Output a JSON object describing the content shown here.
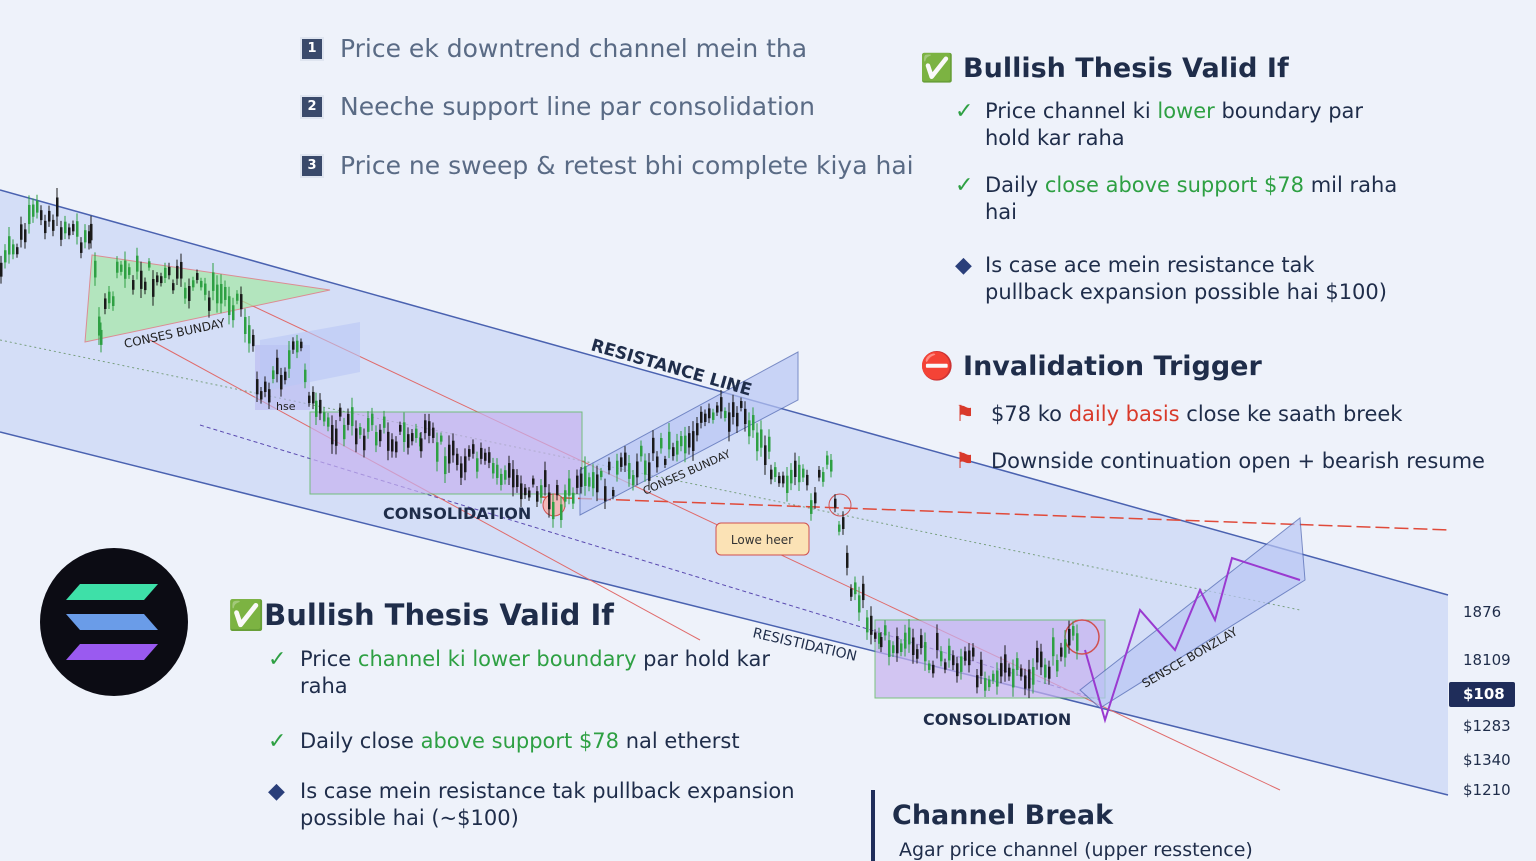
{
  "steps": [
    {
      "number": "1",
      "text": "Price ek downtrend channel mein tha"
    },
    {
      "number": "2",
      "text": "Neeche support line par consolidation"
    },
    {
      "number": "3",
      "text": "Price ne sweep & retest bhi complete kiya hai"
    }
  ],
  "right_panel": {
    "title": "Bullish Thesis Valid If",
    "items": [
      {
        "segments": [
          {
            "text": "Price channel ki "
          },
          {
            "text": "lower",
            "color": "#2ea043"
          },
          {
            "text": " boundary par hold kar raha"
          }
        ]
      },
      {
        "segments": [
          {
            "text": "Daily "
          },
          {
            "text": "close above support $78",
            "color": "#2ea043"
          },
          {
            "text": " mil raha hai"
          }
        ]
      },
      {
        "segments": [
          {
            "text": "Is case ace mein resistance tak pullback expansion possible hai $100)"
          }
        ]
      }
    ],
    "invalidation_title": "Invalidation Trigger",
    "invalidation_items": [
      {
        "segments": [
          {
            "text": "$78 ko "
          },
          {
            "text": "daily basis",
            "color": "#d93a2b"
          },
          {
            "text": " close ke saath breek"
          }
        ]
      },
      {
        "segments": [
          {
            "text": "Downside continuation open + bearish resume"
          }
        ]
      }
    ]
  },
  "bottom_panel": {
    "title": "Bullish Thesis Valid If",
    "items": [
      {
        "segments": [
          {
            "text": "Price "
          },
          {
            "text": "channel ki lower boundary",
            "color": "#2ea043"
          },
          {
            "text": " par hold kar raha"
          }
        ]
      },
      {
        "segments": [
          {
            "text": "Daily close "
          },
          {
            "text": "above support $78",
            "color": "#2ea043"
          },
          {
            "text": " nal etherst"
          }
        ]
      },
      {
        "segments": [
          {
            "text": "Is case mein resistance tak pullback expansion possible hai (~$100)"
          }
        ]
      }
    ]
  },
  "chart_labels": {
    "triangle": "CONSES BUNDAY",
    "small": "hse",
    "resistance": "RESISTANCE LINE",
    "consolidation_1": "CONSOLIDATION",
    "channel_boundary": "CONSES BUNDAY",
    "lower_high": "Lowe heer",
    "residtidation": "RESISTIDATION",
    "consolidation_2": "CONSOLIDATION",
    "sense": "SENSCE BONZLAY"
  },
  "price_labels": [
    "1876",
    "18109",
    "$108",
    "$1283",
    "$1340",
    "$1210"
  ],
  "channel_break": {
    "title": "Channel Break",
    "text": "Agar price channel (upper resstence)"
  }
}
